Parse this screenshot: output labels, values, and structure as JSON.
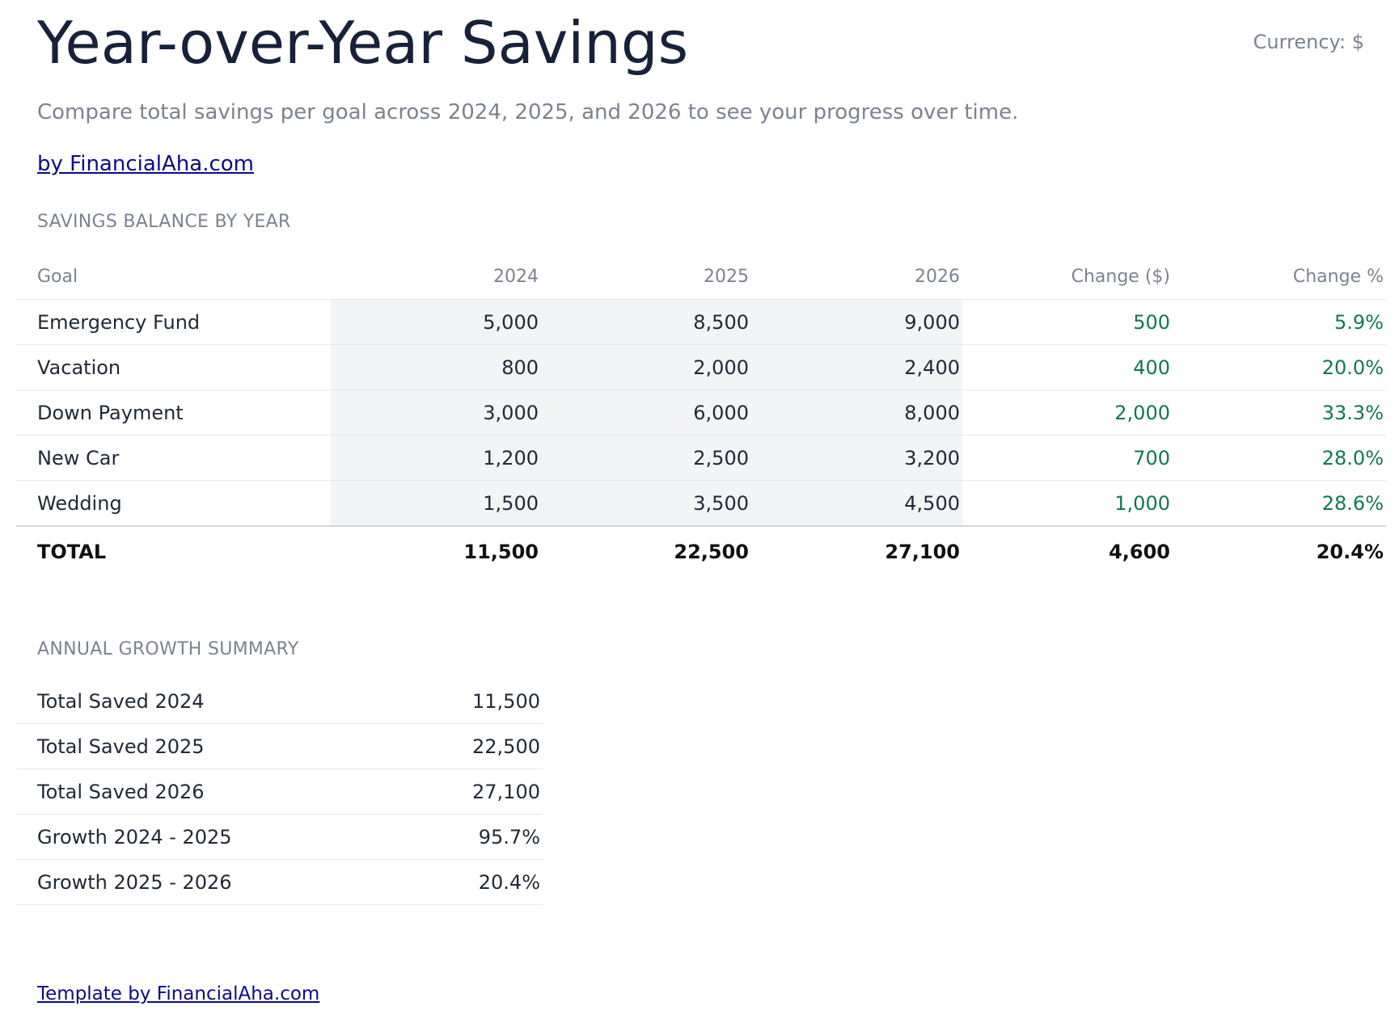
{
  "header": {
    "title": "Year-over-Year Savings",
    "currency": "Currency: $",
    "subtitle": "Compare total savings per goal across 2024, 2025, and 2026 to see your progress over time.",
    "byline": "by FinancialAha.com"
  },
  "table": {
    "section": "SAVINGS BALANCE BY YEAR",
    "columns": [
      "Goal",
      "2024",
      "2025",
      "2026",
      "Change ($)",
      "Change %"
    ],
    "rows": [
      [
        "Emergency Fund",
        "5,000",
        "8,500",
        "9,000",
        "500",
        "5.9%"
      ],
      [
        "Vacation",
        "800",
        "2,000",
        "2,400",
        "400",
        "20.0%"
      ],
      [
        "Down Payment",
        "3,000",
        "6,000",
        "8,000",
        "2,000",
        "33.3%"
      ],
      [
        "New Car",
        "1,200",
        "2,500",
        "3,200",
        "700",
        "28.0%"
      ],
      [
        "Wedding",
        "1,500",
        "3,500",
        "4,500",
        "1,000",
        "28.6%"
      ]
    ],
    "total": [
      "TOTAL",
      "11,500",
      "22,500",
      "27,100",
      "4,600",
      "20.4%"
    ]
  },
  "summary": {
    "section": "ANNUAL GROWTH SUMMARY",
    "rows": [
      [
        "Total Saved 2024",
        "11,500"
      ],
      [
        "Total Saved 2025",
        "22,500"
      ],
      [
        "Total Saved 2026",
        "27,100"
      ],
      [
        "Growth 2024 - 2025",
        "95.7%"
      ],
      [
        "Growth 2025 - 2026",
        "20.4%"
      ]
    ]
  },
  "footer": {
    "link": "Template by FinancialAha.com"
  }
}
